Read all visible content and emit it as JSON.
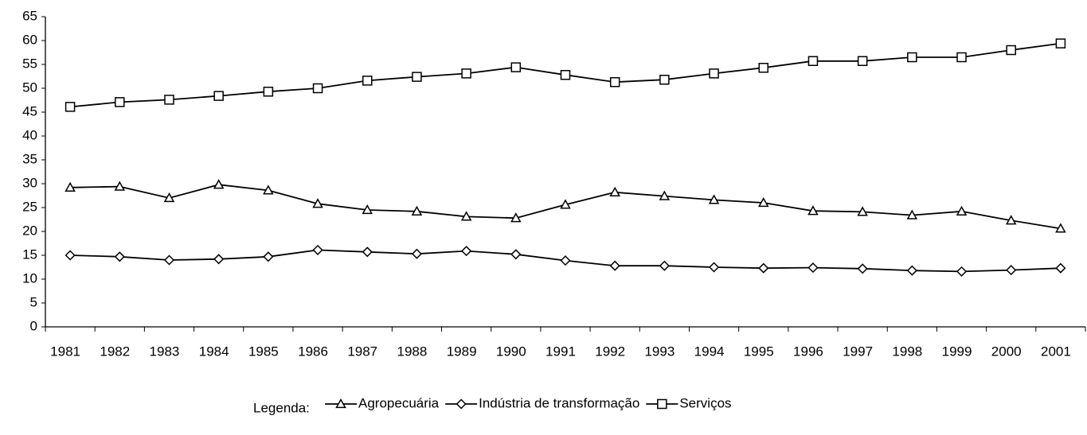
{
  "chart_data": {
    "type": "line",
    "categories": [
      "1981",
      "1982",
      "1983",
      "1984",
      "1985",
      "1986",
      "1987",
      "1988",
      "1989",
      "1990",
      "1991",
      "1992",
      "1993",
      "1994",
      "1995",
      "1996",
      "1997",
      "1998",
      "1999",
      "2000",
      "2001"
    ],
    "series": [
      {
        "name": "Agropecuária",
        "color": "#000000",
        "marker": "triangle",
        "values": [
          29.2,
          29.4,
          27.0,
          29.8,
          28.6,
          25.8,
          24.5,
          24.2,
          23.1,
          22.8,
          25.6,
          28.2,
          27.4,
          26.6,
          26.0,
          24.3,
          24.1,
          23.4,
          24.2,
          22.3,
          20.6
        ]
      },
      {
        "name": "Indústria de transformação",
        "color": "#000000",
        "marker": "diamond",
        "values": [
          15.0,
          14.7,
          14.0,
          14.2,
          14.7,
          16.1,
          15.7,
          15.3,
          15.9,
          15.2,
          13.9,
          12.8,
          12.8,
          12.5,
          12.3,
          12.4,
          12.2,
          11.8,
          11.6,
          11.9,
          12.3
        ]
      },
      {
        "name": "Serviços",
        "color": "#000000",
        "marker": "square",
        "values": [
          46.1,
          47.1,
          47.6,
          48.4,
          49.3,
          50.0,
          51.6,
          52.4,
          53.1,
          54.4,
          52.8,
          51.3,
          51.8,
          53.1,
          54.3,
          55.7,
          55.7,
          56.5,
          56.5,
          58.0,
          59.4
        ]
      }
    ],
    "ylim": [
      0,
      65
    ],
    "yticks": [
      0,
      5,
      10,
      15,
      20,
      25,
      30,
      35,
      40,
      45,
      50,
      55,
      60,
      65
    ],
    "grid": false,
    "legend_title": "Legenda:",
    "legend": "bottom"
  }
}
